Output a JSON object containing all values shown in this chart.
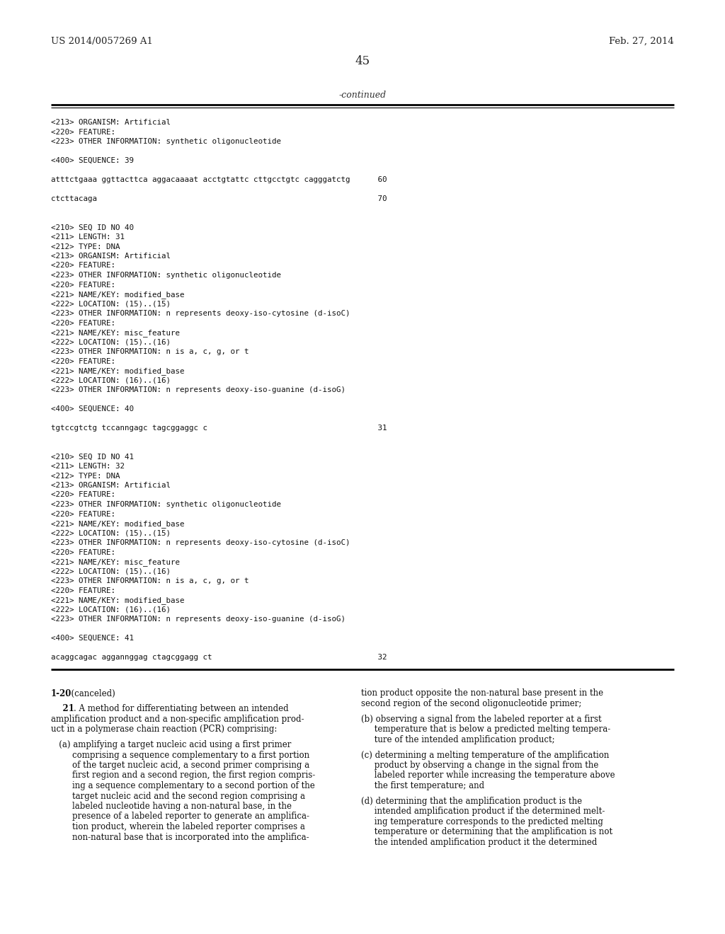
{
  "bg_color": "#ffffff",
  "header_left": "US 2014/0057269 A1",
  "header_right": "Feb. 27, 2014",
  "page_number": "45",
  "continued_label": "-continued",
  "mono_lines": [
    "<213> ORGANISM: Artificial",
    "<220> FEATURE:",
    "<223> OTHER INFORMATION: synthetic oligonucleotide",
    "",
    "<400> SEQUENCE: 39",
    "",
    "atttctgaaa ggttacttca aggacaaaat acctgtattc cttgcctgtc cagggatctg      60",
    "",
    "ctcttacaga                                                             70",
    "",
    "",
    "<210> SEQ ID NO 40",
    "<211> LENGTH: 31",
    "<212> TYPE: DNA",
    "<213> ORGANISM: Artificial",
    "<220> FEATURE:",
    "<223> OTHER INFORMATION: synthetic oligonucleotide",
    "<220> FEATURE:",
    "<221> NAME/KEY: modified_base",
    "<222> LOCATION: (15)..(15)",
    "<223> OTHER INFORMATION: n represents deoxy-iso-cytosine (d-isoC)",
    "<220> FEATURE:",
    "<221> NAME/KEY: misc_feature",
    "<222> LOCATION: (15)..(16)",
    "<223> OTHER INFORMATION: n is a, c, g, or t",
    "<220> FEATURE:",
    "<221> NAME/KEY: modified_base",
    "<222> LOCATION: (16)..(16)",
    "<223> OTHER INFORMATION: n represents deoxy-iso-guanine (d-isoG)",
    "",
    "<400> SEQUENCE: 40",
    "",
    "tgtccgtctg tccanngagc tagcggaggc c                                     31",
    "",
    "",
    "<210> SEQ ID NO 41",
    "<211> LENGTH: 32",
    "<212> TYPE: DNA",
    "<213> ORGANISM: Artificial",
    "<220> FEATURE:",
    "<223> OTHER INFORMATION: synthetic oligonucleotide",
    "<220> FEATURE:",
    "<221> NAME/KEY: modified_base",
    "<222> LOCATION: (15)..(15)",
    "<223> OTHER INFORMATION: n represents deoxy-iso-cytosine (d-isoC)",
    "<220> FEATURE:",
    "<221> NAME/KEY: misc_feature",
    "<222> LOCATION: (15)..(16)",
    "<223> OTHER INFORMATION: n is a, c, g, or t",
    "<220> FEATURE:",
    "<221> NAME/KEY: modified_base",
    "<222> LOCATION: (16)..(16)",
    "<223> OTHER INFORMATION: n represents deoxy-iso-guanine (d-isoG)",
    "",
    "<400> SEQUENCE: 41",
    "",
    "acaggcagac aggannggag ctagcggagg ct                                    32"
  ],
  "left_col_lines": [
    {
      "type": "bold_inline",
      "bold_part": "1-20",
      "normal_part": ". (canceled)",
      "indent": 0
    },
    {
      "type": "blank"
    },
    {
      "type": "bold_inline",
      "bold_part": "    21",
      "normal_part": ". A method for differentiating between an intended",
      "indent": 0
    },
    {
      "type": "normal",
      "text": "amplification product and a non-specific amplification prod-",
      "indent": 0
    },
    {
      "type": "normal",
      "text": "uct in a polymerase chain reaction (PCR) comprising:",
      "indent": 0
    },
    {
      "type": "blank"
    },
    {
      "type": "normal",
      "text": "   (a) amplifying a target nucleic acid using a first primer",
      "indent": 0
    },
    {
      "type": "normal",
      "text": "        comprising a sequence complementary to a first portion",
      "indent": 0
    },
    {
      "type": "normal",
      "text": "        of the target nucleic acid, a second primer comprising a",
      "indent": 0
    },
    {
      "type": "normal",
      "text": "        first region and a second region, the first region compris-",
      "indent": 0
    },
    {
      "type": "normal",
      "text": "        ing a sequence complementary to a second portion of the",
      "indent": 0
    },
    {
      "type": "normal",
      "text": "        target nucleic acid and the second region comprising a",
      "indent": 0
    },
    {
      "type": "normal",
      "text": "        labeled nucleotide having a non-natural base, in the",
      "indent": 0
    },
    {
      "type": "normal",
      "text": "        presence of a labeled reporter to generate an amplifica-",
      "indent": 0
    },
    {
      "type": "normal",
      "text": "        tion product, wherein the labeled reporter comprises a",
      "indent": 0
    },
    {
      "type": "normal",
      "text": "        non-natural base that is incorporated into the amplifica-",
      "indent": 0
    }
  ],
  "right_col_lines": [
    {
      "type": "normal",
      "text": "tion product opposite the non-natural base present in the"
    },
    {
      "type": "normal",
      "text": "second region of the second oligonucleotide primer;"
    },
    {
      "type": "blank"
    },
    {
      "type": "normal",
      "text": "(b) observing a signal from the labeled reporter at a first"
    },
    {
      "type": "normal",
      "text": "     temperature that is below a predicted melting tempera-"
    },
    {
      "type": "normal",
      "text": "     ture of the intended amplification product;"
    },
    {
      "type": "blank"
    },
    {
      "type": "normal",
      "text": "(c) determining a melting temperature of the amplification"
    },
    {
      "type": "normal",
      "text": "     product by observing a change in the signal from the"
    },
    {
      "type": "normal",
      "text": "     labeled reporter while increasing the temperature above"
    },
    {
      "type": "normal",
      "text": "     the first temperature; and"
    },
    {
      "type": "blank"
    },
    {
      "type": "normal",
      "text": "(d) determining that the amplification product is the"
    },
    {
      "type": "normal",
      "text": "     intended amplification product if the determined melt-"
    },
    {
      "type": "normal",
      "text": "     ing temperature corresponds to the predicted melting"
    },
    {
      "type": "normal",
      "text": "     temperature or determining that the amplification is not"
    },
    {
      "type": "normal",
      "text": "     the intended amplification product it the determined"
    }
  ]
}
